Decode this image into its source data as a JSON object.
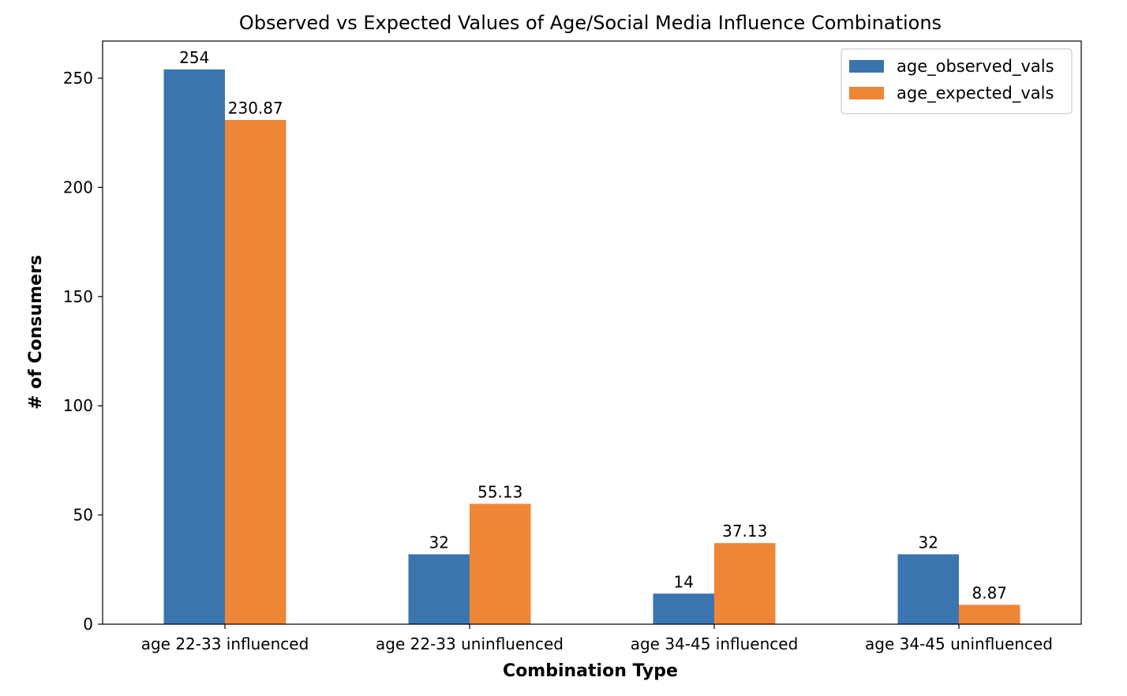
{
  "chart_data": {
    "type": "bar",
    "title": "Observed vs Expected Values of Age/Social Media Influence Combinations",
    "xlabel": "Combination Type",
    "ylabel": "# of Consumers",
    "categories": [
      "age 22-33 influenced",
      "age 22-33 uninfluenced",
      "age 34-45 influenced",
      "age 34-45 uninfluenced"
    ],
    "series": [
      {
        "name": "age_observed_vals",
        "values": [
          254,
          32,
          14,
          32
        ],
        "labels": [
          "254",
          "32",
          "14",
          "32"
        ],
        "color": "#3a75af"
      },
      {
        "name": "age_expected_vals",
        "values": [
          230.87,
          55.13,
          37.13,
          8.87
        ],
        "labels": [
          "230.87",
          "55.13",
          "37.13",
          "8.87"
        ],
        "color": "#ef8636"
      }
    ],
    "ylim": [
      0,
      267
    ],
    "yticks": [
      0,
      50,
      100,
      150,
      200,
      250
    ],
    "grid": false,
    "legend_position": "top-right"
  }
}
